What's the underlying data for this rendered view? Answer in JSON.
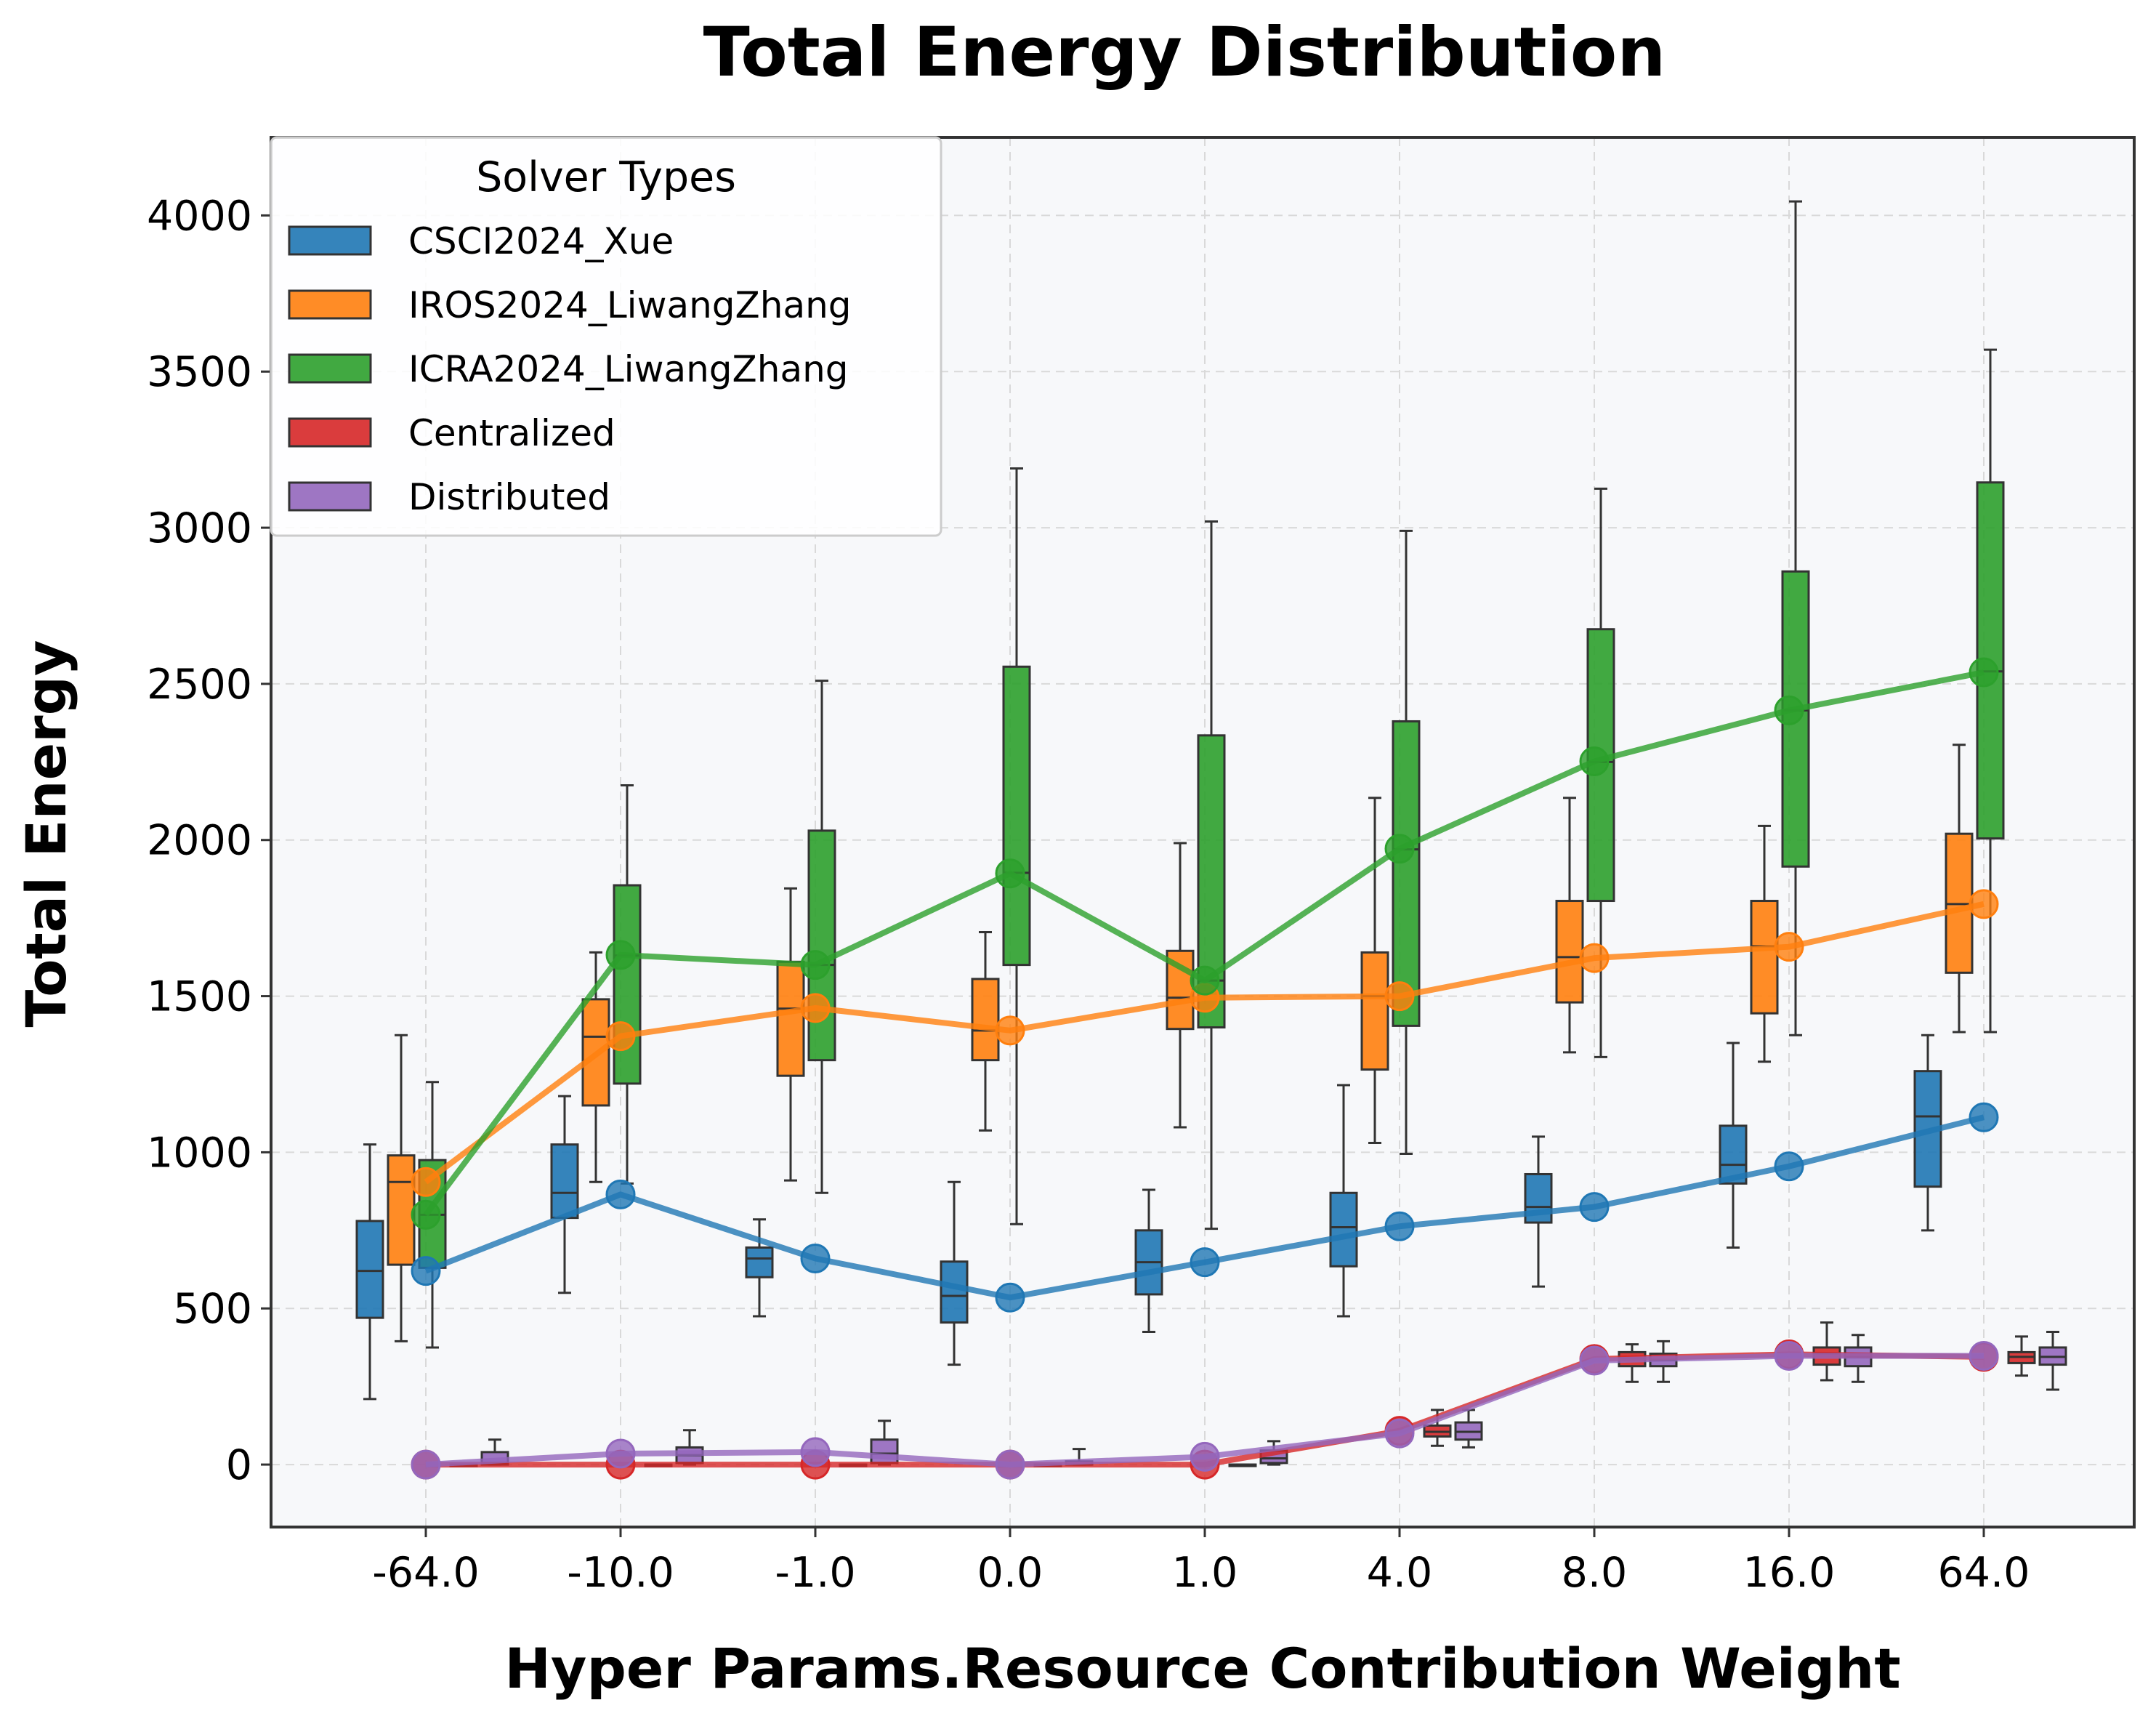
{
  "chart_data": {
    "type": "box",
    "title": "Total Energy Distribution",
    "xlabel": "Hyper Params.Resource Contribution Weight",
    "ylabel": "Total Energy",
    "categories": [
      "-64.0",
      "-10.0",
      "-1.0",
      "0.0",
      "1.0",
      "4.0",
      "8.0",
      "16.0",
      "64.0"
    ],
    "ylim": [
      -200,
      4250
    ],
    "yticks": [
      0,
      500,
      1000,
      1500,
      2000,
      2500,
      3000,
      3500,
      4000
    ],
    "grid": true,
    "background": "#f7f8fa",
    "legend": {
      "title": "Solver Types",
      "placement": "top-left"
    },
    "series": [
      {
        "name": "CSCI2024_Xue",
        "color": "#1f77b4",
        "means": [
          620,
          865,
          660,
          535,
          648,
          763,
          825,
          955,
          1112
        ],
        "boxes": [
          {
            "whislo": 210,
            "q1": 470,
            "med": 620,
            "q3": 780,
            "whishi": 1025
          },
          {
            "whislo": 550,
            "q1": 790,
            "med": 870,
            "q3": 1025,
            "whishi": 1180
          },
          {
            "whislo": 475,
            "q1": 600,
            "med": 660,
            "q3": 695,
            "whishi": 785
          },
          {
            "whislo": 320,
            "q1": 455,
            "med": 540,
            "q3": 650,
            "whishi": 905
          },
          {
            "whislo": 425,
            "q1": 545,
            "med": 648,
            "q3": 750,
            "whishi": 880
          },
          {
            "whislo": 475,
            "q1": 635,
            "med": 760,
            "q3": 870,
            "whishi": 1215
          },
          {
            "whislo": 570,
            "q1": 775,
            "med": 825,
            "q3": 930,
            "whishi": 1050
          },
          {
            "whislo": 695,
            "q1": 900,
            "med": 960,
            "q3": 1085,
            "whishi": 1350
          },
          {
            "whislo": 750,
            "q1": 890,
            "med": 1115,
            "q3": 1260,
            "whishi": 1375
          }
        ]
      },
      {
        "name": "IROS2024_LiwangZhang",
        "color": "#ff7f0e",
        "means": [
          905,
          1372,
          1462,
          1390,
          1495,
          1500,
          1622,
          1658,
          1795
        ],
        "boxes": [
          {
            "whislo": 395,
            "q1": 640,
            "med": 905,
            "q3": 990,
            "whishi": 1375
          },
          {
            "whislo": 905,
            "q1": 1150,
            "med": 1370,
            "q3": 1490,
            "whishi": 1640
          },
          {
            "whislo": 910,
            "q1": 1245,
            "med": 1460,
            "q3": 1610,
            "whishi": 1845
          },
          {
            "whislo": 1070,
            "q1": 1295,
            "med": 1390,
            "q3": 1555,
            "whishi": 1705
          },
          {
            "whislo": 1080,
            "q1": 1395,
            "med": 1495,
            "q3": 1645,
            "whishi": 1990
          },
          {
            "whislo": 1030,
            "q1": 1265,
            "med": 1500,
            "q3": 1640,
            "whishi": 2135
          },
          {
            "whislo": 1320,
            "q1": 1480,
            "med": 1625,
            "q3": 1805,
            "whishi": 2135
          },
          {
            "whislo": 1290,
            "q1": 1445,
            "med": 1660,
            "q3": 1805,
            "whishi": 2045
          },
          {
            "whislo": 1385,
            "q1": 1575,
            "med": 1795,
            "q3": 2020,
            "whishi": 2305
          }
        ]
      },
      {
        "name": "ICRA2024_LiwangZhang",
        "color": "#2ca02c",
        "means": [
          800,
          1632,
          1600,
          1893,
          1550,
          1972,
          2252,
          2415,
          2537
        ],
        "boxes": [
          {
            "whislo": 375,
            "q1": 630,
            "med": 800,
            "q3": 975,
            "whishi": 1225
          },
          {
            "whislo": 900,
            "q1": 1220,
            "med": 1630,
            "q3": 1855,
            "whishi": 2175
          },
          {
            "whislo": 870,
            "q1": 1295,
            "med": 1600,
            "q3": 2030,
            "whishi": 2510
          },
          {
            "whislo": 770,
            "q1": 1600,
            "med": 1895,
            "q3": 2555,
            "whishi": 3190
          },
          {
            "whislo": 755,
            "q1": 1400,
            "med": 1550,
            "q3": 2335,
            "whishi": 3020
          },
          {
            "whislo": 995,
            "q1": 1405,
            "med": 1970,
            "q3": 2380,
            "whishi": 2990
          },
          {
            "whislo": 1305,
            "q1": 1805,
            "med": 2250,
            "q3": 2675,
            "whishi": 3125
          },
          {
            "whislo": 1375,
            "q1": 1915,
            "med": 2415,
            "q3": 2860,
            "whishi": 4045
          },
          {
            "whislo": 1385,
            "q1": 2005,
            "med": 2540,
            "q3": 3145,
            "whishi": 3570
          }
        ]
      },
      {
        "name": "Centralized",
        "color": "#d62728",
        "means": [
          0,
          0,
          0,
          0,
          0,
          108,
          338,
          353,
          345
        ],
        "boxes": [
          {
            "whislo": 0,
            "q1": 0,
            "med": 0,
            "q3": 0,
            "whishi": 0
          },
          {
            "whislo": 0,
            "q1": 0,
            "med": 0,
            "q3": 0,
            "whishi": 0
          },
          {
            "whislo": 0,
            "q1": 0,
            "med": 0,
            "q3": 0,
            "whishi": 0
          },
          {
            "whislo": 0,
            "q1": 0,
            "med": 0,
            "q3": 0,
            "whishi": 0
          },
          {
            "whislo": 0,
            "q1": 0,
            "med": 0,
            "q3": 0,
            "whishi": 0
          },
          {
            "whislo": 60,
            "q1": 90,
            "med": 105,
            "q3": 125,
            "whishi": 175
          },
          {
            "whislo": 265,
            "q1": 315,
            "med": 340,
            "q3": 360,
            "whishi": 385
          },
          {
            "whislo": 270,
            "q1": 320,
            "med": 355,
            "q3": 375,
            "whishi": 455
          },
          {
            "whislo": 285,
            "q1": 325,
            "med": 345,
            "q3": 360,
            "whishi": 410
          }
        ]
      },
      {
        "name": "Distributed",
        "color": "#9467bd",
        "means": [
          0,
          35,
          40,
          0,
          25,
          100,
          333,
          348,
          348
        ],
        "boxes": [
          {
            "whislo": 0,
            "q1": 0,
            "med": 5,
            "q3": 40,
            "whishi": 80
          },
          {
            "whislo": 0,
            "q1": 5,
            "med": 30,
            "q3": 55,
            "whishi": 110
          },
          {
            "whislo": 0,
            "q1": 5,
            "med": 35,
            "q3": 80,
            "whishi": 140
          },
          {
            "whislo": 0,
            "q1": 0,
            "med": 0,
            "q3": 10,
            "whishi": 50
          },
          {
            "whislo": 0,
            "q1": 5,
            "med": 20,
            "q3": 45,
            "whishi": 75
          },
          {
            "whislo": 55,
            "q1": 80,
            "med": 105,
            "q3": 135,
            "whishi": 175
          },
          {
            "whislo": 265,
            "q1": 315,
            "med": 335,
            "q3": 355,
            "whishi": 395
          },
          {
            "whislo": 265,
            "q1": 315,
            "med": 345,
            "q3": 375,
            "whishi": 415
          },
          {
            "whislo": 240,
            "q1": 320,
            "med": 345,
            "q3": 375,
            "whishi": 425
          }
        ]
      }
    ]
  }
}
